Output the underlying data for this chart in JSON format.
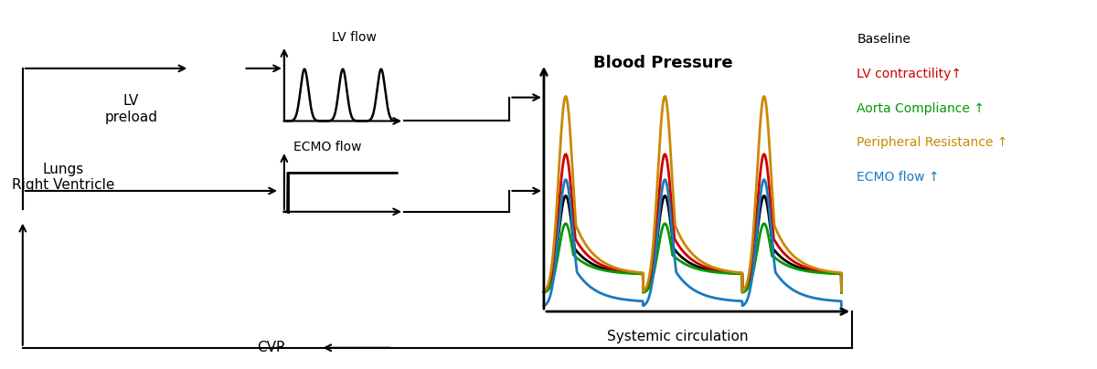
{
  "bg_color": "#ffffff",
  "text_color": "#000000",
  "lv_preload_text": "LV\npreload",
  "lv_flow_text": "LV flow",
  "ecmo_flow_text": "ECMO flow",
  "lungs_rv_text": "Lungs\nRight Ventricle",
  "cvp_text": "CVP",
  "blood_pressure_text": "Blood Pressure",
  "systemic_circ_text": "Systemic circulation",
  "legend_items": [
    {
      "label": "Baseline",
      "color": "#000000"
    },
    {
      "label": "LV contractility↑",
      "color": "#cc0000"
    },
    {
      "label": "Aorta Compliance ↑",
      "color": "#009900"
    },
    {
      "label": "Peripheral Resistance ↑",
      "color": "#cc8800"
    },
    {
      "label": "ECMO flow ↑",
      "color": "#1a7abf"
    }
  ],
  "curve_colors": [
    "#000000",
    "#cc0000",
    "#009900",
    "#cc8800",
    "#1a7abf"
  ],
  "curve_amplitudes": [
    0.42,
    0.6,
    0.3,
    0.85,
    0.55
  ],
  "curve_diastolic": [
    0.08,
    0.08,
    0.08,
    0.08,
    0.02
  ]
}
